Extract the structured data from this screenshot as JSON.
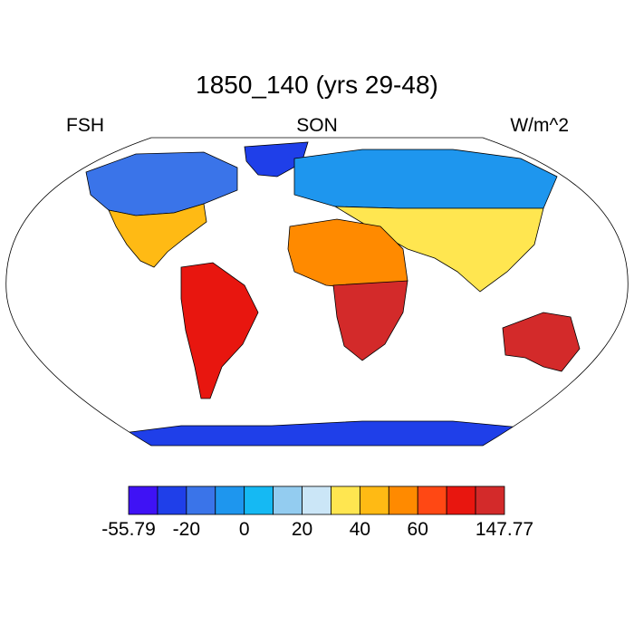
{
  "title": "1850_140 (yrs 29-48)",
  "left_label": "FSH",
  "center_label": "SON",
  "right_label": "W/m^2",
  "colorbar": {
    "colors": [
      "#3f12f5",
      "#1f3fe9",
      "#3a74e9",
      "#1e96ee",
      "#15b9f3",
      "#93ccf0",
      "#cbe6f7",
      "#ffe650",
      "#ffba14",
      "#ff8a00",
      "#ff4814",
      "#e8160f",
      "#d32a2a"
    ],
    "tick_labels": [
      "-55.79",
      "-20",
      "0",
      "20",
      "40",
      "60",
      "147.77"
    ]
  },
  "map": {
    "projection": "robinson",
    "regions": [
      {
        "name": "greenland",
        "color": "#1f3fe9"
      },
      {
        "name": "north-america-north",
        "color": "#3a74e9"
      },
      {
        "name": "north-america-south",
        "color": "#ffba14"
      },
      {
        "name": "south-america",
        "color": "#e8160f"
      },
      {
        "name": "eurasia-north",
        "color": "#1e96ee"
      },
      {
        "name": "eurasia-south",
        "color": "#ffe650"
      },
      {
        "name": "africa-north",
        "color": "#ff8a00"
      },
      {
        "name": "africa-south",
        "color": "#d32a2a"
      },
      {
        "name": "australia",
        "color": "#d32a2a"
      },
      {
        "name": "antarctica",
        "color": "#1f3fe9"
      }
    ]
  }
}
